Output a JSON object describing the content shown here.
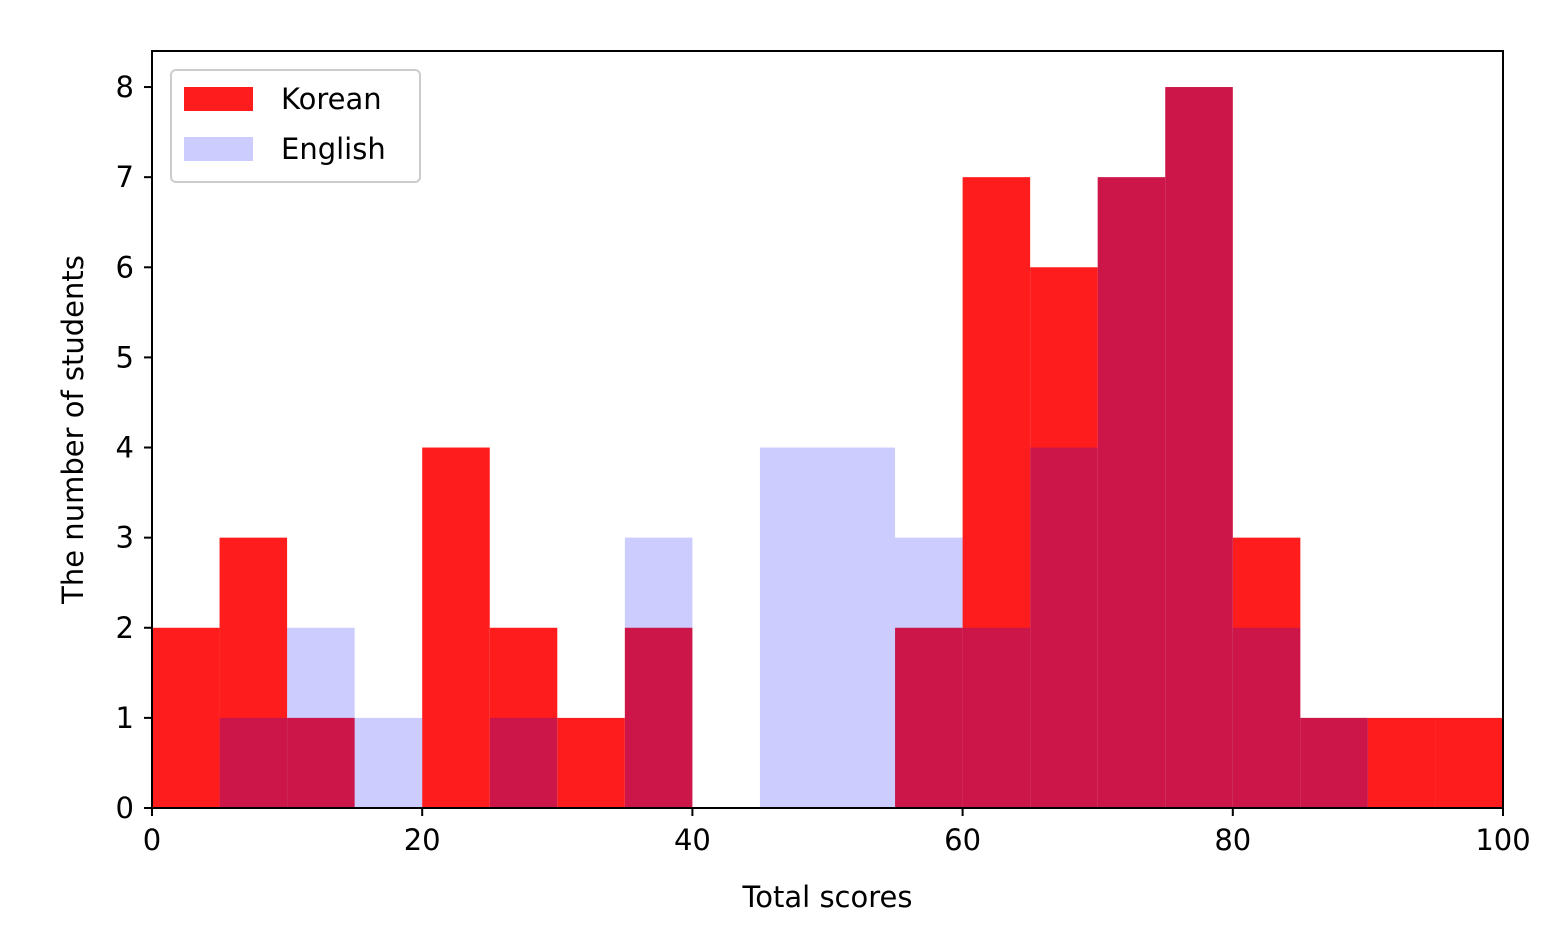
{
  "chart_data": {
    "type": "bar",
    "subtype": "histogram",
    "title": "",
    "xlabel": "Total scores",
    "ylabel": "The number of students",
    "xlim": [
      0,
      100
    ],
    "ylim": [
      0,
      8.4
    ],
    "xticks": [
      0,
      20,
      40,
      60,
      80,
      100
    ],
    "yticks": [
      0,
      1,
      2,
      3,
      4,
      5,
      6,
      7,
      8
    ],
    "grid": false,
    "legend_position": "top-left",
    "bin_edges": [
      0,
      5,
      10,
      15,
      20,
      25,
      30,
      35,
      40,
      45,
      50,
      55,
      60,
      65,
      70,
      75,
      80,
      85,
      90,
      95,
      100
    ],
    "series": [
      {
        "name": "Korean",
        "color": "#ff1c1c",
        "opacity": 1.0,
        "values": [
          2,
          3,
          1,
          0,
          4,
          2,
          1,
          2,
          0,
          0,
          0,
          2,
          7,
          6,
          7,
          8,
          3,
          1,
          1,
          1
        ]
      },
      {
        "name": "English",
        "color": "#0000ff",
        "opacity": 0.2,
        "values": [
          0,
          1,
          2,
          1,
          0,
          1,
          0,
          3,
          0,
          4,
          4,
          3,
          2,
          4,
          7,
          8,
          2,
          1,
          0,
          0
        ]
      }
    ]
  }
}
